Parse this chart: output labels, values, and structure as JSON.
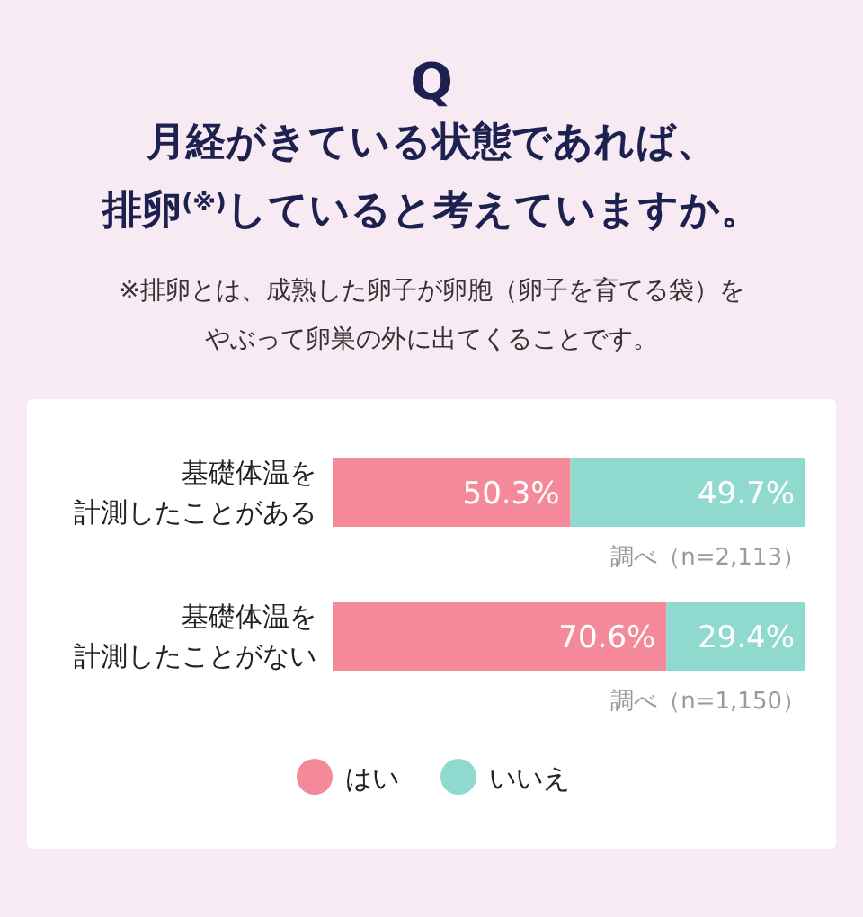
{
  "chart_data": {
    "type": "bar",
    "orientation": "horizontal",
    "stacked": true,
    "title": "月経がきている状態であれば、排卵$^{(※)}$していると考えていますか。",
    "subtitle": "※排卵とは、成熟した卵子が卵胞（卵子を育てる袋）をやぶって卵巣の外に出てくることです。",
    "categories": [
      "基礎体温を計測したことがある",
      "基礎体温を計測したことがない"
    ],
    "series": [
      {
        "name": "はい",
        "color": "#f4899a",
        "values": [
          50.3,
          70.6
        ],
        "value_labels": [
          "50.3%",
          "70.6%"
        ]
      },
      {
        "name": "いいえ",
        "color": "#8fd9cf",
        "values": [
          49.7,
          29.4
        ],
        "value_labels": [
          "49.7%",
          "29.4%"
        ]
      }
    ],
    "xlim": [
      0,
      100
    ],
    "tick_labels": "y",
    "legend": "bottom",
    "annotations": [
      "Q",
      "調べ（n=2,113）",
      "調べ（n=1,150）"
    ]
  }
}
